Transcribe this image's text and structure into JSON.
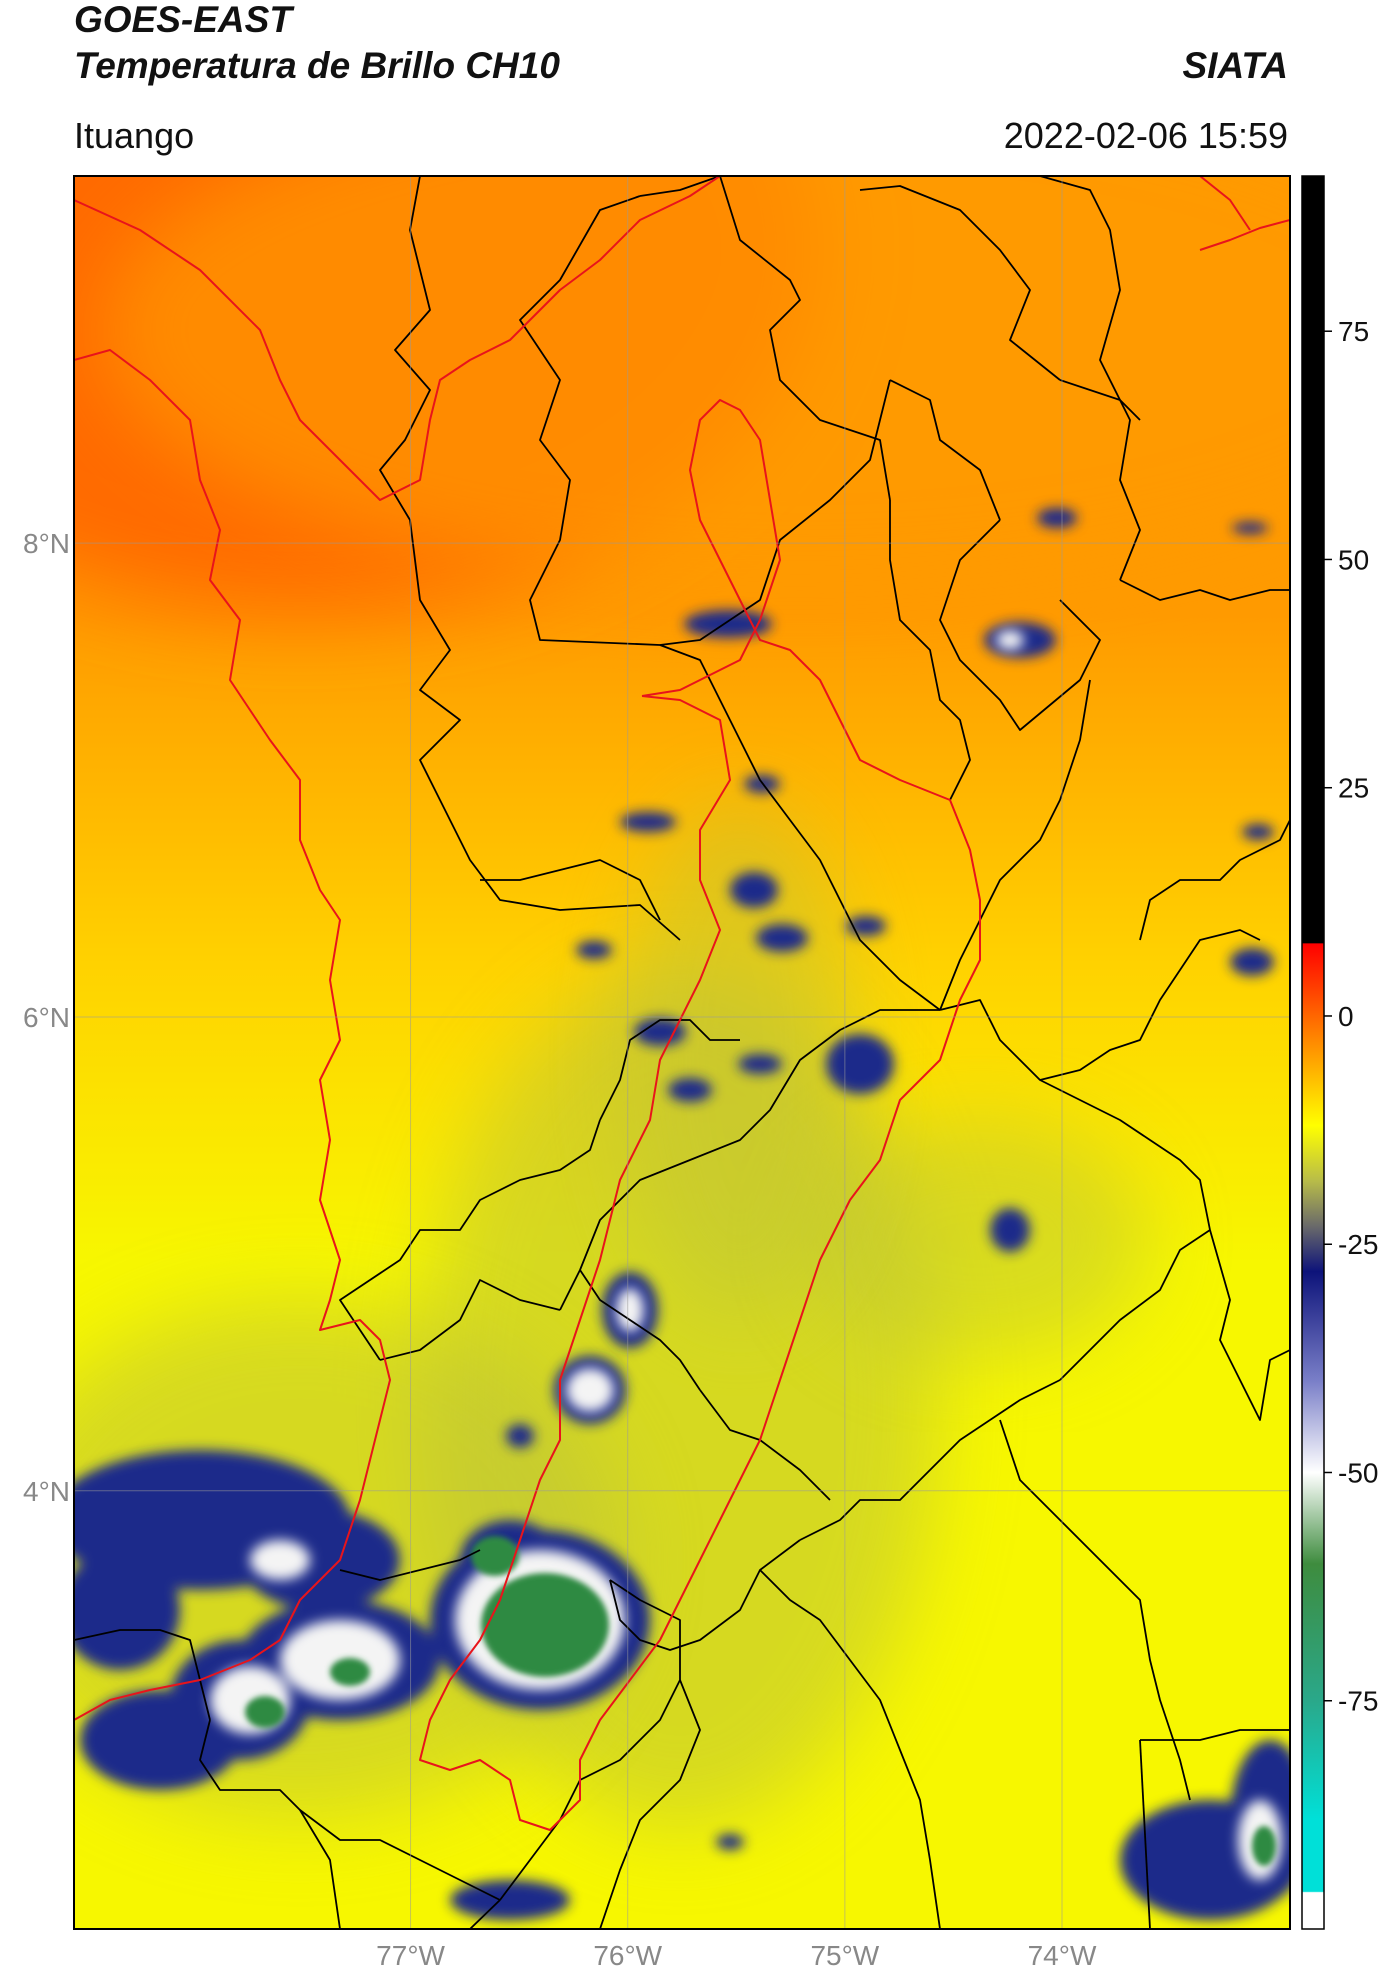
{
  "header": {
    "title_line1": "GOES-EAST",
    "title_line2": "Temperatura de Brillo CH10",
    "brand": "SIATA",
    "region": "Ituango",
    "datetime": "2022-02-06 15:59"
  },
  "map": {
    "lat_range": [
      2.15,
      9.55
    ],
    "lon_range": [
      -78.55,
      -72.95
    ],
    "lat_ticks": [
      {
        "value": 8,
        "label": "8°N"
      },
      {
        "value": 6,
        "label": "6°N"
      },
      {
        "value": 4,
        "label": "4°N"
      }
    ],
    "lon_ticks": [
      {
        "value": -77,
        "label": "77°W"
      },
      {
        "value": -76,
        "label": "76°W"
      },
      {
        "value": -75,
        "label": "75°W"
      },
      {
        "value": -74,
        "label": "74°W"
      }
    ],
    "colors": {
      "warm_dark": "#ff6a00",
      "warm": "#ff9a00",
      "mid": "#ffd200",
      "yellow": "#f7f700",
      "olive": "#bcc23a",
      "grey": "#8c8e6e",
      "navy": "#1f2a8a",
      "white": "#f4f4f4",
      "green": "#2f8a42",
      "border_black": "#000000",
      "border_red": "#e8141b"
    }
  },
  "colorbar": {
    "range": [
      -100,
      92
    ],
    "ticks": [
      {
        "value": 75,
        "label": "75"
      },
      {
        "value": 50,
        "label": "50"
      },
      {
        "value": 25,
        "label": "25"
      },
      {
        "value": 0,
        "label": "0"
      },
      {
        "value": -25,
        "label": "-25"
      },
      {
        "value": -50,
        "label": "-50"
      },
      {
        "value": -75,
        "label": "-75"
      }
    ],
    "stops": [
      {
        "value": 92,
        "color": "#000000"
      },
      {
        "value": 8,
        "color": "#000000"
      },
      {
        "value": 7.9,
        "color": "#ff0000"
      },
      {
        "value": -2,
        "color": "#ff8000"
      },
      {
        "value": -12,
        "color": "#ffff00"
      },
      {
        "value": -18,
        "color": "#b9bd48"
      },
      {
        "value": -23,
        "color": "#6a6a6a"
      },
      {
        "value": -28,
        "color": "#0d137a"
      },
      {
        "value": -40,
        "color": "#7a7fc8"
      },
      {
        "value": -50,
        "color": "#ffffff"
      },
      {
        "value": -60,
        "color": "#3e8c3e"
      },
      {
        "value": -75,
        "color": "#2aa88a"
      },
      {
        "value": -88,
        "color": "#00e0d8"
      },
      {
        "value": -95.9,
        "color": "#00e0d8"
      },
      {
        "value": -96,
        "color": "#ffffff"
      },
      {
        "value": -100,
        "color": "#ffffff"
      }
    ]
  }
}
